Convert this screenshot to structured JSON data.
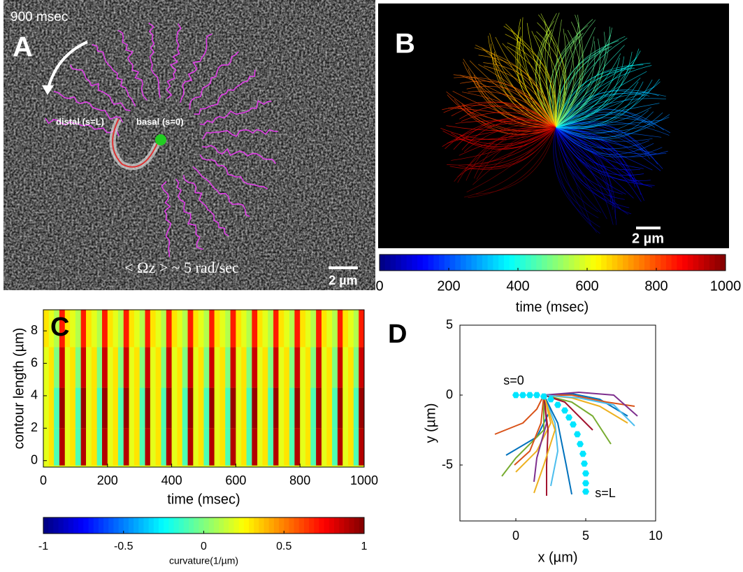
{
  "panel_a": {
    "label": "A",
    "time": "900 msec",
    "distal": "distal (s=L)",
    "basal": "basal (s=0)",
    "rate": "< Ωz > ~ 5 rad/sec",
    "scale_bar": "2 µm"
  },
  "panel_b": {
    "label": "B",
    "scale_bar": "2 µm",
    "colorbar": {
      "label": "time (msec)",
      "lim": [
        0,
        1000
      ],
      "ticks": [
        0,
        200,
        400,
        600,
        800,
        1000
      ],
      "colormap": "jet"
    }
  },
  "chart_data": [
    {
      "type": "heatmap",
      "panel_label": "C",
      "xlabel": "time (msec)",
      "ylabel": "contour length (µm)",
      "colormap": "jet",
      "x_edges": [
        0,
        17,
        33,
        50,
        67,
        83,
        100,
        117,
        133,
        150,
        167,
        183,
        200,
        217,
        233,
        250,
        267,
        283,
        300,
        317,
        333,
        350,
        367,
        383,
        400,
        417,
        433,
        450,
        467,
        483,
        500,
        517,
        533,
        550,
        567,
        583,
        600,
        617,
        633,
        650,
        667,
        683,
        700,
        717,
        733,
        750,
        767,
        783,
        800,
        817,
        833,
        850,
        867,
        883,
        900,
        917,
        933,
        950,
        967,
        983,
        1000
      ],
      "y_edges": [
        -0.3,
        2,
        4.5,
        7,
        9.3
      ],
      "values": [
        [
          0.2,
          0.3,
          -0.1,
          0.9,
          0.2,
          0.3,
          -0.1,
          0.9,
          0.2,
          0.3,
          -0.1,
          0.9,
          0.2,
          0.3,
          -0.1,
          0.9,
          0.2,
          0.3,
          -0.1,
          0.9,
          0.2,
          0.3,
          -0.1,
          0.9,
          0.2,
          0.3,
          -0.1,
          0.9,
          0.2,
          0.3,
          -0.1,
          0.9,
          0.2,
          0.3,
          -0.1,
          0.9,
          0.2,
          0.3,
          -0.1,
          0.9,
          0.2,
          0.3,
          -0.1,
          0.9,
          0.2,
          0.3,
          -0.1,
          0.9,
          0.2,
          0.3,
          -0.1,
          0.9,
          0.2,
          0.3,
          -0.1,
          0.9,
          0.2,
          0.3,
          -0.1,
          0.9
        ],
        [
          0.2,
          0.3,
          -0.1,
          0.95,
          0.2,
          0.3,
          -0.1,
          0.95,
          0.2,
          0.3,
          -0.1,
          0.95,
          0.2,
          0.3,
          -0.1,
          0.95,
          0.2,
          0.3,
          -0.1,
          0.95,
          0.2,
          0.3,
          -0.1,
          0.95,
          0.2,
          0.3,
          -0.1,
          0.95,
          0.2,
          0.3,
          -0.1,
          0.95,
          0.2,
          0.3,
          -0.1,
          0.95,
          0.2,
          0.3,
          -0.1,
          0.95,
          0.2,
          0.3,
          -0.1,
          0.95,
          0.2,
          0.3,
          -0.1,
          0.95,
          0.2,
          0.3,
          -0.1,
          0.95,
          0.2,
          0.3,
          -0.1,
          0.95,
          0.2,
          0.3,
          -0.1,
          0.95
        ],
        [
          0.2,
          0.3,
          0,
          0.85,
          0.2,
          0.3,
          0,
          0.85,
          0.2,
          0.3,
          0,
          0.85,
          0.2,
          0.3,
          0,
          0.85,
          0.2,
          0.3,
          0,
          0.85,
          0.2,
          0.3,
          0,
          0.85,
          0.2,
          0.3,
          0,
          0.85,
          0.2,
          0.3,
          0,
          0.85,
          0.2,
          0.3,
          0,
          0.85,
          0.2,
          0.3,
          0,
          0.85,
          0.2,
          0.3,
          0,
          0.85,
          0.2,
          0.3,
          0,
          0.85,
          0.2,
          0.3,
          0,
          0.85,
          0.2,
          0.3,
          0,
          0.85,
          0.2,
          0.3,
          0,
          0.85
        ],
        [
          0.3,
          0.2,
          0.1,
          0.7,
          0.3,
          0.2,
          0.1,
          0.7,
          0.3,
          0.2,
          0.1,
          0.7,
          0.3,
          0.2,
          0.1,
          0.7,
          0.3,
          0.2,
          0.1,
          0.7,
          0.3,
          0.2,
          0.1,
          0.7,
          0.3,
          0.2,
          0.1,
          0.7,
          0.3,
          0.2,
          0.1,
          0.7,
          0.3,
          0.2,
          0.1,
          0.7,
          0.3,
          0.2,
          0.1,
          0.7,
          0.3,
          0.2,
          0.1,
          0.7,
          0.3,
          0.2,
          0.1,
          0.7,
          0.3,
          0.2,
          0.1,
          0.7,
          0.3,
          0.2,
          0.1,
          0.7,
          0.3,
          0.2,
          0.1,
          0.7
        ]
      ],
      "xlim": [
        0,
        1000
      ],
      "ylim": [
        -0.4,
        9.3
      ],
      "xticks": [
        0,
        200,
        400,
        600,
        800,
        1000
      ],
      "yticks": [
        0,
        2,
        4,
        6,
        8
      ],
      "colorbar": {
        "label": "curvature(1/µm)",
        "lim": [
          -1,
          1
        ],
        "ticks": [
          -1,
          -0.5,
          0,
          0.5,
          1
        ]
      }
    },
    {
      "type": "line",
      "panel_label": "D",
      "xlabel": "x (µm)",
      "ylabel": "y (µm)",
      "xlim": [
        -4,
        10
      ],
      "ylim": [
        -9,
        5
      ],
      "xticks": [
        0,
        5,
        10
      ],
      "yticks": [
        -5,
        0,
        5
      ],
      "annotations": [
        "s=0",
        "s=L"
      ],
      "series": [
        {
          "color": "#0072BD",
          "x": [
            2,
            4,
            6,
            8
          ],
          "y": [
            0,
            0.1,
            -0.3,
            -1.5
          ]
        },
        {
          "color": "#D95319",
          "x": [
            2,
            4,
            6.5,
            8.5
          ],
          "y": [
            0,
            0,
            -0.5,
            -0.8
          ]
        },
        {
          "color": "#EDB120",
          "x": [
            2,
            4,
            6,
            8
          ],
          "y": [
            0,
            -0.2,
            -0.8,
            -2
          ]
        },
        {
          "color": "#7E2F8E",
          "x": [
            2,
            4.5,
            7,
            8.7
          ],
          "y": [
            0,
            0.2,
            0,
            -1.5
          ]
        },
        {
          "color": "#77AC30",
          "x": [
            2,
            4,
            5.5,
            6.8
          ],
          "y": [
            0,
            -0.5,
            -1.5,
            -3.5
          ]
        },
        {
          "color": "#4DBEEE",
          "x": [
            2,
            4.5,
            7,
            8.5
          ],
          "y": [
            0,
            -0.2,
            -0.7,
            -2.2
          ]
        },
        {
          "color": "#A2142F",
          "x": [
            2,
            3.5,
            4.5,
            5.5
          ],
          "y": [
            0,
            -0.5,
            -1.5,
            -2.5
          ]
        },
        {
          "color": "#0072BD",
          "x": [
            2,
            2.5,
            1.5,
            -0.7
          ],
          "y": [
            0,
            -1,
            -3,
            -4.3
          ]
        },
        {
          "color": "#D95319",
          "x": [
            2,
            1.5,
            0.5,
            -1.5
          ],
          "y": [
            0,
            -1,
            -2,
            -2.8
          ]
        },
        {
          "color": "#EDB120",
          "x": [
            2,
            2.5,
            1.5,
            0
          ],
          "y": [
            0,
            -2,
            -4,
            -5.5
          ]
        },
        {
          "color": "#7E2F8E",
          "x": [
            2,
            2.2,
            1.5,
            1.3
          ],
          "y": [
            0,
            -2,
            -4.5,
            -6.2
          ]
        },
        {
          "color": "#77AC30",
          "x": [
            2,
            2,
            0,
            -1
          ],
          "y": [
            0,
            -2.5,
            -4.5,
            -5.8
          ]
        },
        {
          "color": "#4DBEEE",
          "x": [
            2,
            2.8,
            3,
            2.5
          ],
          "y": [
            0,
            -2,
            -4,
            -6.5
          ]
        },
        {
          "color": "#A2142F",
          "x": [
            2,
            2.3,
            2.2,
            2.2
          ],
          "y": [
            0,
            -2.5,
            -5,
            -7.2
          ]
        },
        {
          "color": "#0072BD",
          "x": [
            2,
            3,
            3.6,
            4
          ],
          "y": [
            0,
            -2,
            -5,
            -7.1
          ]
        },
        {
          "color": "#D95319",
          "x": [
            2,
            1.8,
            1,
            -0.1
          ],
          "y": [
            0,
            -2,
            -4,
            -5
          ]
        },
        {
          "color": "#EDB120",
          "x": [
            2,
            2.8,
            2,
            1.3
          ],
          "y": [
            0,
            -2.5,
            -5,
            -7
          ]
        },
        {
          "color": "#00e5ff",
          "marker": "hexagon",
          "x": [
            0,
            0.5,
            1,
            1.5,
            2,
            2.5,
            3,
            3.5,
            3.8,
            4.1,
            4.4,
            4.6,
            4.8,
            4.9,
            5,
            5,
            5
          ],
          "y": [
            0,
            0,
            0,
            0,
            -0.1,
            -0.3,
            -0.7,
            -1.1,
            -1.6,
            -2.1,
            -2.8,
            -3.5,
            -4.2,
            -4.9,
            -5.6,
            -6.3,
            -6.9
          ]
        }
      ]
    }
  ]
}
